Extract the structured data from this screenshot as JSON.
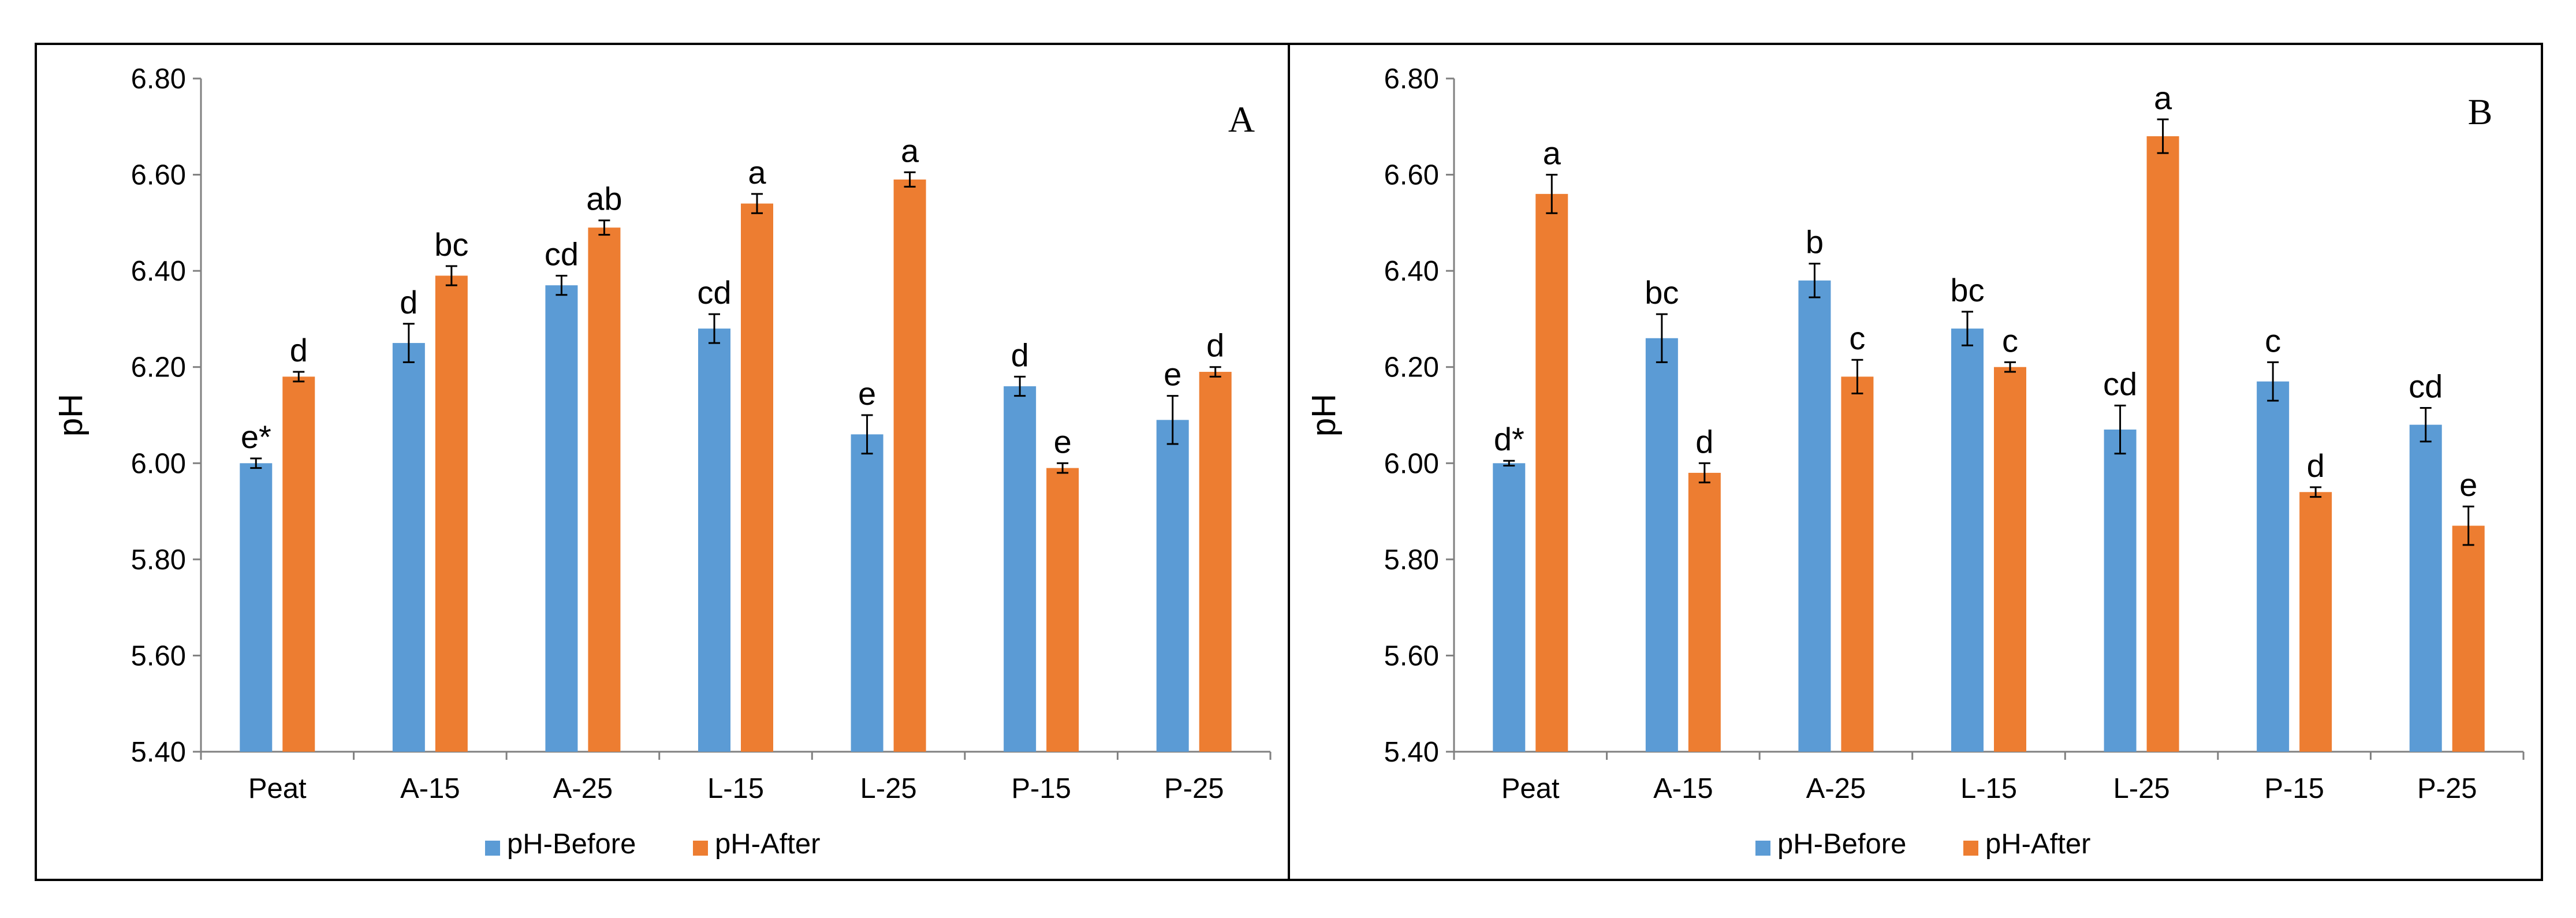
{
  "chart_data": [
    {
      "type": "bar",
      "panel_label": "A",
      "ylabel": "pH",
      "xlabel": "",
      "ylim": [
        5.4,
        6.8
      ],
      "yticks": [
        "5.40",
        "5.60",
        "5.80",
        "6.00",
        "6.20",
        "6.40",
        "6.60",
        "6.80"
      ],
      "categories": [
        "Peat",
        "A-15",
        "A-25",
        "L-15",
        "L-25",
        "P-15",
        "P-25"
      ],
      "series": [
        {
          "name": "pH-Before",
          "color": "#5B9BD5",
          "values": [
            6.0,
            6.25,
            6.37,
            6.28,
            6.06,
            6.16,
            6.09
          ],
          "errors": [
            0.01,
            0.04,
            0.02,
            0.03,
            0.04,
            0.02,
            0.05
          ],
          "letters": [
            "e*",
            "d",
            "cd",
            "cd",
            "e",
            "d",
            "e"
          ]
        },
        {
          "name": "pH-After",
          "color": "#ED7D31",
          "values": [
            6.18,
            6.39,
            6.49,
            6.54,
            6.59,
            5.99,
            6.19
          ],
          "errors": [
            0.01,
            0.02,
            0.015,
            0.02,
            0.015,
            0.01,
            0.01
          ],
          "letters": [
            "d",
            "bc",
            "ab",
            "a",
            "a",
            "e",
            "d"
          ]
        }
      ],
      "legend_position": "bottom"
    },
    {
      "type": "bar",
      "panel_label": "B",
      "ylabel": "pH",
      "xlabel": "",
      "ylim": [
        5.4,
        6.8
      ],
      "yticks": [
        "5.40",
        "5.60",
        "5.80",
        "6.00",
        "6.20",
        "6.40",
        "6.60",
        "6.80"
      ],
      "categories": [
        "Peat",
        "A-15",
        "A-25",
        "L-15",
        "L-25",
        "P-15",
        "P-25"
      ],
      "series": [
        {
          "name": "pH-Before",
          "color": "#5B9BD5",
          "values": [
            6.0,
            6.26,
            6.38,
            6.28,
            6.07,
            6.17,
            6.08
          ],
          "errors": [
            0.005,
            0.05,
            0.035,
            0.035,
            0.05,
            0.04,
            0.035
          ],
          "letters": [
            "d*",
            "bc",
            "b",
            "bc",
            "cd",
            "c",
            "cd"
          ]
        },
        {
          "name": "pH-After",
          "color": "#ED7D31",
          "values": [
            6.56,
            5.98,
            6.18,
            6.2,
            6.68,
            5.94,
            5.87
          ],
          "errors": [
            0.04,
            0.02,
            0.035,
            0.01,
            0.035,
            0.01,
            0.04
          ],
          "letters": [
            "a",
            "d",
            "c",
            "c",
            "a",
            "d",
            "e"
          ]
        }
      ],
      "legend_position": "bottom"
    }
  ]
}
